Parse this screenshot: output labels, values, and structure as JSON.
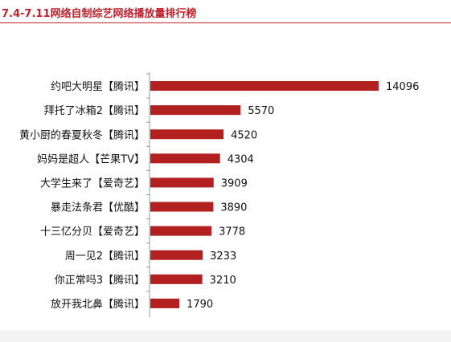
{
  "title": "7.4-7.11网络自制综艺网络播放量排行榜",
  "colors": {
    "accent": "#c0202a",
    "bar": "#b2201f",
    "axis": "#9a9a9a",
    "text": "#111111"
  },
  "chart_data": {
    "type": "bar",
    "orientation": "horizontal",
    "title": "7.4-7.11网络自制综艺网络播放量排行榜",
    "xlabel": "",
    "ylabel": "",
    "grid": false,
    "categories": [
      "约吧大明星【腾讯】",
      "拜托了冰箱2【腾讯】",
      "黄小厨的春夏秋冬【腾讯】",
      "妈妈是超人【芒果TV】",
      "大学生来了【爱奇艺】",
      "暴走法条君【优酷】",
      "十三亿分贝【爱奇艺】",
      "周一见2【腾讯】",
      "你正常吗3【腾讯】",
      "放开我北鼻【腾讯】"
    ],
    "values": [
      14096,
      5570,
      4520,
      4304,
      3909,
      3890,
      3778,
      3233,
      3210,
      1790
    ],
    "data_labels": [
      "14096",
      "5570",
      "4520",
      "4304",
      "3909",
      "3890",
      "3778",
      "3233",
      "3210",
      "1790"
    ],
    "xlim": [
      0,
      14096
    ]
  }
}
